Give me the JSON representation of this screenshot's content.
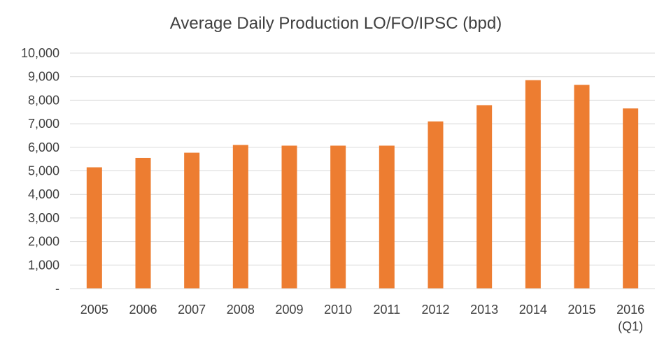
{
  "chart_data": {
    "type": "bar",
    "title": "Average Daily Production LO/FO/IPSC (bpd)",
    "xlabel": "",
    "ylabel": "",
    "categories": [
      "2005",
      "2006",
      "2007",
      "2008",
      "2009",
      "2010",
      "2011",
      "2012",
      "2013",
      "2014",
      "2015",
      "2016\n(Q1)"
    ],
    "values": [
      5150,
      5550,
      5770,
      6100,
      6070,
      6070,
      6070,
      7100,
      7790,
      8850,
      8650,
      7650
    ],
    "ylim": [
      0,
      10000
    ],
    "yticks": [
      0,
      1000,
      2000,
      3000,
      4000,
      5000,
      6000,
      7000,
      8000,
      9000,
      10000
    ],
    "ytick_labels": [
      "-",
      "1,000",
      "2,000",
      "3,000",
      "4,000",
      "5,000",
      "6,000",
      "7,000",
      "8,000",
      "9,000",
      "10,000"
    ],
    "grid": true,
    "legend": "none",
    "bar_color": "#ed7d31"
  }
}
